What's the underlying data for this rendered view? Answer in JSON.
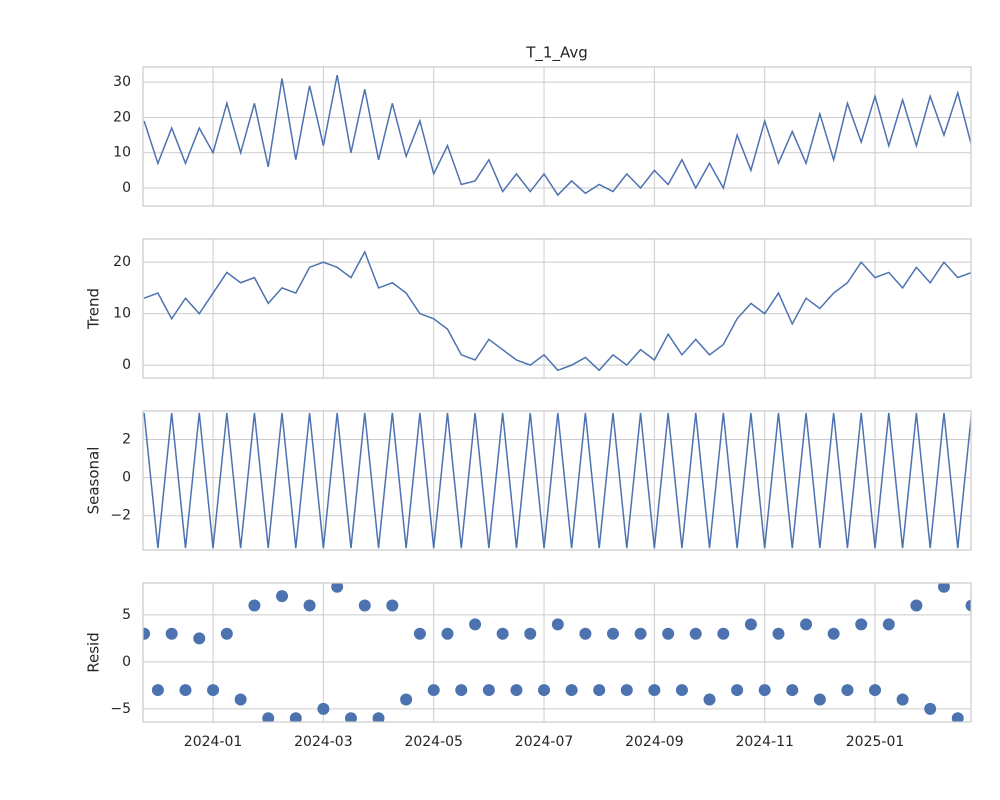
{
  "chart_data": [
    {
      "type": "line",
      "title": "T_1_Avg",
      "color": "#4c72b0",
      "grid": true,
      "x": [
        -1.25,
        -1,
        -0.75,
        -0.5,
        -0.25,
        0,
        0.25,
        0.5,
        0.75,
        1,
        1.25,
        1.5,
        1.75,
        2,
        2.25,
        2.5,
        2.75,
        3,
        3.25,
        3.5,
        3.75,
        4,
        4.25,
        4.5,
        4.75,
        5,
        5.25,
        5.5,
        5.75,
        6,
        6.25,
        6.5,
        6.75,
        7,
        7.25,
        7.5,
        7.75,
        8,
        8.25,
        8.5,
        8.75,
        9,
        9.25,
        9.5,
        9.75,
        10,
        10.25,
        10.5,
        10.75,
        11,
        11.25,
        11.5,
        11.75,
        12,
        12.25,
        12.5,
        12.75,
        13,
        13.25,
        13.5,
        13.75
      ],
      "values": [
        19,
        7,
        17,
        7,
        17,
        10,
        24,
        10,
        24,
        6,
        31,
        8,
        29,
        12,
        32,
        10,
        28,
        8,
        24,
        9,
        19,
        4,
        12,
        1,
        2,
        8,
        -1,
        4,
        -1,
        4,
        -2,
        2,
        -1.5,
        1,
        -1,
        4,
        0,
        5,
        1,
        8,
        0,
        7,
        0,
        15,
        5,
        19,
        7,
        16,
        7,
        21,
        8,
        24,
        13,
        26,
        12,
        25,
        12,
        26,
        15,
        27,
        12
      ],
      "xlim": [
        -1.27,
        13.74
      ],
      "xticks": [
        0,
        2,
        4,
        6,
        8,
        10,
        12
      ],
      "ylim": [
        -5.1,
        34.3
      ],
      "yticks": [
        0,
        10,
        20,
        30
      ]
    },
    {
      "type": "line",
      "ylabel": "Trend",
      "color": "#4c72b0",
      "grid": true,
      "x": [
        -1.25,
        -1,
        -0.75,
        -0.5,
        -0.25,
        0,
        0.25,
        0.5,
        0.75,
        1,
        1.25,
        1.5,
        1.75,
        2,
        2.25,
        2.5,
        2.75,
        3,
        3.25,
        3.5,
        3.75,
        4,
        4.25,
        4.5,
        4.75,
        5,
        5.25,
        5.5,
        5.75,
        6,
        6.25,
        6.5,
        6.75,
        7,
        7.25,
        7.5,
        7.75,
        8,
        8.25,
        8.5,
        8.75,
        9,
        9.25,
        9.5,
        9.75,
        10,
        10.25,
        10.5,
        10.75,
        11,
        11.25,
        11.5,
        11.75,
        12,
        12.25,
        12.5,
        12.75,
        13,
        13.25,
        13.5,
        13.75
      ],
      "values": [
        13,
        14,
        9,
        13,
        10,
        14,
        18,
        16,
        17,
        12,
        15,
        14,
        19,
        20,
        19,
        17,
        22,
        15,
        16,
        14,
        10,
        9,
        7,
        2,
        1,
        5,
        3,
        1,
        0,
        2,
        -1,
        0,
        1.5,
        -1,
        2,
        0,
        3,
        1,
        6,
        2,
        5,
        2,
        4,
        9,
        12,
        10,
        14,
        8,
        13,
        11,
        14,
        16,
        20,
        17,
        18,
        15,
        19,
        16,
        20,
        17,
        18
      ],
      "xlim": [
        -1.27,
        13.74
      ],
      "xticks": [
        0,
        2,
        4,
        6,
        8,
        10,
        12
      ],
      "ylim": [
        -2.5,
        24.5
      ],
      "yticks": [
        0,
        10,
        20
      ]
    },
    {
      "type": "line",
      "ylabel": "Seasonal",
      "color": "#4c72b0",
      "grid": true,
      "x": [
        -1.25,
        -1,
        -0.75,
        -0.5,
        -0.25,
        0,
        0.25,
        0.5,
        0.75,
        1,
        1.25,
        1.5,
        1.75,
        2,
        2.25,
        2.5,
        2.75,
        3,
        3.25,
        3.5,
        3.75,
        4,
        4.25,
        4.5,
        4.75,
        5,
        5.25,
        5.5,
        5.75,
        6,
        6.25,
        6.5,
        6.75,
        7,
        7.25,
        7.5,
        7.75,
        8,
        8.25,
        8.5,
        8.75,
        9,
        9.25,
        9.5,
        9.75,
        10,
        10.25,
        10.5,
        10.75,
        11,
        11.25,
        11.5,
        11.75,
        12,
        12.25,
        12.5,
        12.75,
        13,
        13.25,
        13.5,
        13.75
      ],
      "values": [
        3.4,
        -3.7,
        3.4,
        -3.7,
        3.4,
        -3.7,
        3.4,
        -3.7,
        3.4,
        -3.7,
        3.4,
        -3.7,
        3.4,
        -3.7,
        3.4,
        -3.7,
        3.4,
        -3.7,
        3.4,
        -3.7,
        3.4,
        -3.7,
        3.4,
        -3.7,
        3.4,
        -3.7,
        3.4,
        -3.7,
        3.4,
        -3.7,
        3.4,
        -3.7,
        3.4,
        -3.7,
        3.4,
        -3.7,
        3.4,
        -3.7,
        3.4,
        -3.7,
        3.4,
        -3.7,
        3.4,
        -3.7,
        3.4,
        -3.7,
        3.4,
        -3.7,
        3.4,
        -3.7,
        3.4,
        -3.7,
        3.4,
        -3.7,
        3.4,
        -3.7,
        3.4,
        -3.7,
        3.4,
        -3.7,
        3.4
      ],
      "xlim": [
        -1.27,
        13.74
      ],
      "xticks": [
        0,
        2,
        4,
        6,
        8,
        10,
        12
      ],
      "ylim": [
        -3.8,
        3.5
      ],
      "yticks": [
        {
          "value": -2,
          "label": "−2"
        },
        0,
        2
      ]
    },
    {
      "type": "scatter",
      "ylabel": "Resid",
      "color": "#4c72b0",
      "grid": true,
      "x": [
        -1.25,
        -1,
        -0.75,
        -0.5,
        -0.25,
        0,
        0.25,
        0.5,
        0.75,
        1,
        1.25,
        1.5,
        1.75,
        2,
        2.25,
        2.5,
        2.75,
        3,
        3.25,
        3.5,
        3.75,
        4,
        4.25,
        4.5,
        4.75,
        5,
        5.25,
        5.5,
        5.75,
        6,
        6.25,
        6.5,
        6.75,
        7,
        7.25,
        7.5,
        7.75,
        8,
        8.25,
        8.5,
        8.75,
        9,
        9.25,
        9.5,
        9.75,
        10,
        10.25,
        10.5,
        10.75,
        11,
        11.25,
        11.5,
        11.75,
        12,
        12.25,
        12.5,
        12.75,
        13,
        13.25,
        13.5,
        13.75
      ],
      "values": [
        3,
        -3,
        3,
        -3,
        2.5,
        -3,
        3,
        -4,
        6,
        -6,
        7,
        -6,
        6,
        -5,
        8,
        -6,
        6,
        -6,
        6,
        -4,
        3,
        -3,
        3,
        -3,
        4,
        -3,
        3,
        -3,
        3,
        -3,
        4,
        -3,
        3,
        -3,
        3,
        -3,
        3,
        -3,
        3,
        -3,
        3,
        -4,
        3,
        -3,
        4,
        -3,
        3,
        -3,
        4,
        -4,
        3,
        -3,
        4,
        -3,
        4,
        -4,
        6,
        -5,
        8,
        -6,
        6
      ],
      "xlim": [
        -1.27,
        13.74
      ],
      "xticks": [
        {
          "value": 0,
          "label": "2024-01"
        },
        {
          "value": 2,
          "label": "2024-03"
        },
        {
          "value": 4,
          "label": "2024-05"
        },
        {
          "value": 6,
          "label": "2024-07"
        },
        {
          "value": 8,
          "label": "2024-09"
        },
        {
          "value": 10,
          "label": "2024-11"
        },
        {
          "value": 12,
          "label": "2025-01"
        }
      ],
      "ylim": [
        -6.4,
        8.4
      ],
      "yticks": [
        {
          "value": -5,
          "label": "−5"
        },
        0,
        5
      ]
    }
  ]
}
